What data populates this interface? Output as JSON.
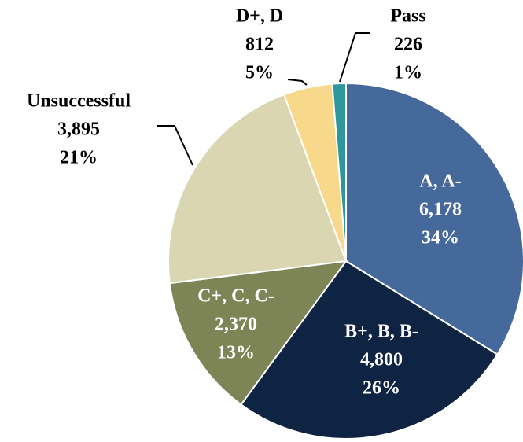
{
  "chart_data": {
    "type": "pie",
    "categories": [
      "A, A-",
      "B+, B, B-",
      "C+, C, C-",
      "Unsuccessful",
      "D+, D",
      "Pass"
    ],
    "values": [
      6178,
      4800,
      2370,
      3895,
      812,
      226
    ],
    "value_labels": [
      "6,178",
      "4,800",
      "2,370",
      "3,895",
      "812",
      "226"
    ],
    "percent_labels": [
      "34%",
      "26%",
      "13%",
      "21%",
      "5%",
      "1%"
    ],
    "colors": [
      "#46699b",
      "#0f2443",
      "#7d8456",
      "#d9d6b1",
      "#f8d98b",
      "#2e979c"
    ]
  }
}
